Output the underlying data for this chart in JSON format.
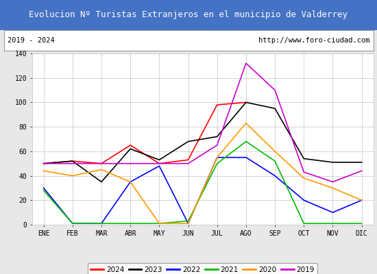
{
  "title": "Evolucion Nº Turistas Extranjeros en el municipio de Valderrey",
  "subtitle_left": "2019 - 2024",
  "subtitle_right": "http://www.foro-ciudad.com",
  "title_bg_color": "#4472c4",
  "title_text_color": "#ffffff",
  "months": [
    "ENE",
    "FEB",
    "MAR",
    "ABR",
    "MAY",
    "JUN",
    "JUL",
    "AGO",
    "SEP",
    "OCT",
    "NOV",
    "DIC"
  ],
  "ylim": [
    0,
    140
  ],
  "yticks": [
    0,
    20,
    40,
    60,
    80,
    100,
    120,
    140
  ],
  "series": {
    "2024": {
      "color": "#ff0000",
      "values": [
        50,
        52,
        50,
        65,
        50,
        53,
        98,
        100,
        null,
        null,
        null,
        null
      ]
    },
    "2023": {
      "color": "#000000",
      "values": [
        50,
        52,
        35,
        62,
        53,
        68,
        72,
        100,
        95,
        54,
        51,
        51
      ]
    },
    "2022": {
      "color": "#0000ff",
      "values": [
        30,
        1,
        1,
        35,
        48,
        1,
        55,
        55,
        40,
        20,
        10,
        20
      ]
    },
    "2021": {
      "color": "#00bb00",
      "values": [
        28,
        1,
        1,
        1,
        1,
        3,
        50,
        68,
        52,
        1,
        1,
        1
      ]
    },
    "2020": {
      "color": "#ff9900",
      "values": [
        44,
        40,
        45,
        35,
        1,
        1,
        55,
        83,
        60,
        38,
        30,
        20
      ]
    },
    "2019": {
      "color": "#cc00cc",
      "values": [
        50,
        50,
        50,
        50,
        50,
        50,
        65,
        132,
        110,
        43,
        35,
        44
      ]
    }
  },
  "legend_order": [
    "2024",
    "2023",
    "2022",
    "2021",
    "2020",
    "2019"
  ],
  "bg_color": "#e8e8e8",
  "plot_bg_color": "#ffffff",
  "grid_color": "#cccccc",
  "subtitle_box_color": "#ffffff",
  "subtitle_box_edge": "#999999",
  "title_fontsize": 9,
  "subtitle_fontsize": 7.5,
  "tick_fontsize": 7,
  "legend_fontsize": 7.5
}
